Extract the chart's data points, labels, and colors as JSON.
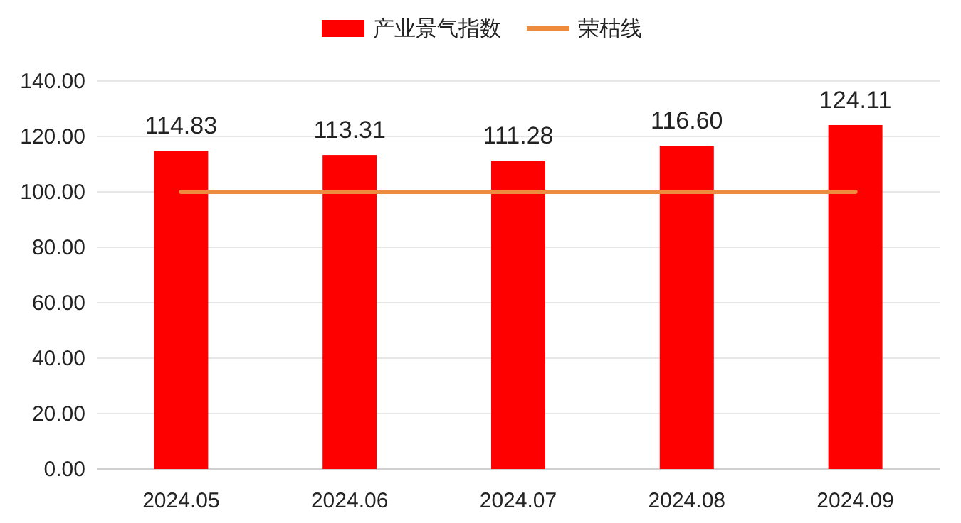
{
  "chart_data": {
    "type": "bar",
    "categories": [
      "2024.05",
      "2024.06",
      "2024.07",
      "2024.08",
      "2024.09"
    ],
    "series": [
      {
        "name": "产业景气指数",
        "color": "#ff0000",
        "values": [
          114.83,
          113.31,
          111.28,
          116.6,
          124.11
        ],
        "value_labels": [
          "114.83",
          "113.31",
          "111.28",
          "116.60",
          "124.11"
        ]
      },
      {
        "name": "荣枯线",
        "type": "line",
        "color": "#ed8b3f",
        "values": [
          100,
          100,
          100,
          100,
          100
        ]
      }
    ],
    "ylim": [
      0,
      140
    ],
    "yticks": [
      {
        "value": 0,
        "label": "0.00"
      },
      {
        "value": 20,
        "label": "20.00"
      },
      {
        "value": 40,
        "label": "40.00"
      },
      {
        "value": 60,
        "label": "60.00"
      },
      {
        "value": 80,
        "label": "80.00"
      },
      {
        "value": 100,
        "label": "100.00"
      },
      {
        "value": 120,
        "label": "120.00"
      },
      {
        "value": 140,
        "label": "140.00"
      }
    ],
    "grid": "y",
    "legend": "top"
  }
}
